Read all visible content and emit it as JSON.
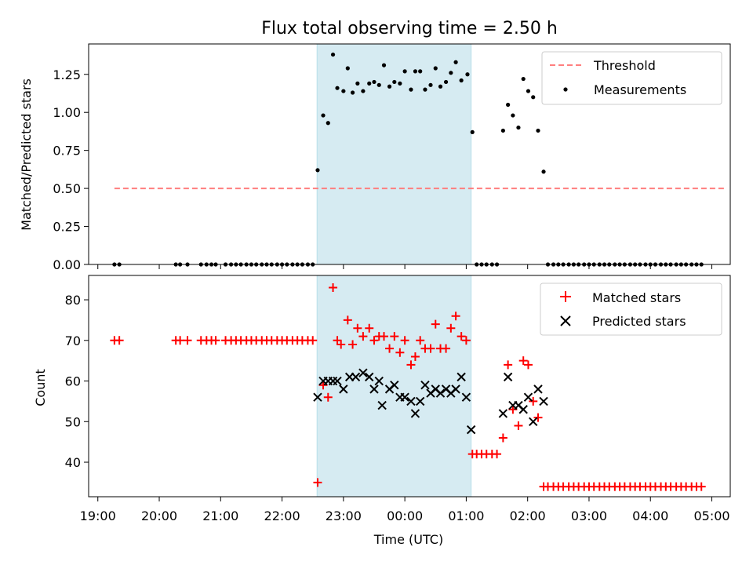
{
  "title": "Flux total observing time = 2.50 h",
  "chart_data": [
    {
      "type": "scatter",
      "panel": "top",
      "ylabel": "Matched/Predicted stars",
      "ylim": [
        0,
        1.45
      ],
      "xlim": [
        18.85,
        29.3
      ],
      "yticks": [
        0.0,
        0.25,
        0.5,
        0.75,
        1.0,
        1.25
      ],
      "ytick_labels": [
        "0.00",
        "0.25",
        "0.50",
        "0.75",
        "1.00",
        "1.25"
      ],
      "shaded_span": [
        22.57,
        25.08
      ],
      "threshold": {
        "name": "Threshold",
        "value": 0.5,
        "x_range": [
          19.27,
          29.2
        ],
        "color": "#ff7f7f"
      },
      "legend": [
        "Threshold",
        "Measurements"
      ],
      "series": [
        {
          "name": "Measurements",
          "color": "#000000",
          "points": [
            [
              19.27,
              0
            ],
            [
              19.35,
              0
            ],
            [
              20.27,
              0
            ],
            [
              20.34,
              0
            ],
            [
              20.46,
              0
            ],
            [
              20.68,
              0
            ],
            [
              20.77,
              0
            ],
            [
              20.85,
              0
            ],
            [
              20.92,
              0
            ],
            [
              21.08,
              0
            ],
            [
              21.17,
              0
            ],
            [
              21.25,
              0
            ],
            [
              21.33,
              0
            ],
            [
              21.42,
              0
            ],
            [
              21.5,
              0
            ],
            [
              21.58,
              0
            ],
            [
              21.67,
              0
            ],
            [
              21.75,
              0
            ],
            [
              21.83,
              0
            ],
            [
              21.92,
              0
            ],
            [
              22.0,
              0
            ],
            [
              22.08,
              0
            ],
            [
              22.17,
              0
            ],
            [
              22.25,
              0
            ],
            [
              22.33,
              0
            ],
            [
              22.42,
              0
            ],
            [
              22.5,
              0
            ],
            [
              22.58,
              0.62
            ],
            [
              22.67,
              0.98
            ],
            [
              22.75,
              0.93
            ],
            [
              22.83,
              1.38
            ],
            [
              22.9,
              1.16
            ],
            [
              23.0,
              1.14
            ],
            [
              23.07,
              1.29
            ],
            [
              23.15,
              1.13
            ],
            [
              23.23,
              1.19
            ],
            [
              23.32,
              1.14
            ],
            [
              23.42,
              1.19
            ],
            [
              23.5,
              1.2
            ],
            [
              23.58,
              1.18
            ],
            [
              23.66,
              1.31
            ],
            [
              23.75,
              1.17
            ],
            [
              23.83,
              1.2
            ],
            [
              23.92,
              1.19
            ],
            [
              24.0,
              1.27
            ],
            [
              24.1,
              1.15
            ],
            [
              24.17,
              1.27
            ],
            [
              24.25,
              1.27
            ],
            [
              24.33,
              1.15
            ],
            [
              24.42,
              1.18
            ],
            [
              24.5,
              1.29
            ],
            [
              24.58,
              1.17
            ],
            [
              24.67,
              1.2
            ],
            [
              24.75,
              1.26
            ],
            [
              24.83,
              1.33
            ],
            [
              24.92,
              1.21
            ],
            [
              25.02,
              1.25
            ],
            [
              25.1,
              0.87
            ],
            [
              25.17,
              0
            ],
            [
              25.25,
              0
            ],
            [
              25.33,
              0
            ],
            [
              25.42,
              0
            ],
            [
              25.5,
              0
            ],
            [
              25.6,
              0.88
            ],
            [
              25.68,
              1.05
            ],
            [
              25.76,
              0.98
            ],
            [
              25.85,
              0.9
            ],
            [
              25.93,
              1.22
            ],
            [
              26.01,
              1.14
            ],
            [
              26.09,
              1.1
            ],
            [
              26.17,
              0.88
            ],
            [
              26.26,
              0.61
            ],
            [
              26.33,
              0
            ],
            [
              26.42,
              0
            ],
            [
              26.5,
              0
            ],
            [
              26.58,
              0
            ],
            [
              26.67,
              0
            ],
            [
              26.75,
              0
            ],
            [
              26.83,
              0
            ],
            [
              26.92,
              0
            ],
            [
              27.0,
              0
            ],
            [
              27.08,
              0
            ],
            [
              27.17,
              0
            ],
            [
              27.25,
              0
            ],
            [
              27.33,
              0
            ],
            [
              27.42,
              0
            ],
            [
              27.5,
              0
            ],
            [
              27.58,
              0
            ],
            [
              27.67,
              0
            ],
            [
              27.75,
              0
            ],
            [
              27.83,
              0
            ],
            [
              27.92,
              0
            ],
            [
              28.0,
              0
            ],
            [
              28.08,
              0
            ],
            [
              28.17,
              0
            ],
            [
              28.25,
              0
            ],
            [
              28.33,
              0
            ],
            [
              28.42,
              0
            ],
            [
              28.5,
              0
            ],
            [
              28.58,
              0
            ],
            [
              28.67,
              0
            ],
            [
              28.75,
              0
            ],
            [
              28.83,
              0
            ]
          ]
        }
      ]
    },
    {
      "type": "scatter",
      "panel": "bottom",
      "ylabel": "Count",
      "xlabel": "Time (UTC)",
      "ylim": [
        31.5,
        86
      ],
      "xlim": [
        18.85,
        29.3
      ],
      "yticks": [
        40,
        50,
        60,
        70,
        80
      ],
      "ytick_labels": [
        "40",
        "50",
        "60",
        "70",
        "80"
      ],
      "xticks": [
        19,
        20,
        21,
        22,
        23,
        24,
        25,
        26,
        27,
        28,
        29
      ],
      "xtick_labels": [
        "19:00",
        "20:00",
        "21:00",
        "22:00",
        "23:00",
        "00:00",
        "01:00",
        "02:00",
        "03:00",
        "04:00",
        "05:00"
      ],
      "shaded_span": [
        22.57,
        25.08
      ],
      "legend": [
        "Matched stars",
        "Predicted stars"
      ],
      "series": [
        {
          "name": "Matched stars",
          "marker": "plus",
          "color": "#ff0000",
          "points": [
            [
              19.27,
              70
            ],
            [
              19.35,
              70
            ],
            [
              20.27,
              70
            ],
            [
              20.34,
              70
            ],
            [
              20.46,
              70
            ],
            [
              20.68,
              70
            ],
            [
              20.77,
              70
            ],
            [
              20.85,
              70
            ],
            [
              20.92,
              70
            ],
            [
              21.08,
              70
            ],
            [
              21.17,
              70
            ],
            [
              21.25,
              70
            ],
            [
              21.33,
              70
            ],
            [
              21.42,
              70
            ],
            [
              21.5,
              70
            ],
            [
              21.58,
              70
            ],
            [
              21.67,
              70
            ],
            [
              21.75,
              70
            ],
            [
              21.83,
              70
            ],
            [
              21.92,
              70
            ],
            [
              22.0,
              70
            ],
            [
              22.08,
              70
            ],
            [
              22.17,
              70
            ],
            [
              22.25,
              70
            ],
            [
              22.33,
              70
            ],
            [
              22.42,
              70
            ],
            [
              22.5,
              70
            ],
            [
              22.58,
              35
            ],
            [
              22.67,
              59
            ],
            [
              22.75,
              56
            ],
            [
              22.83,
              83
            ],
            [
              22.9,
              70
            ],
            [
              22.96,
              69
            ],
            [
              23.07,
              75
            ],
            [
              23.15,
              69
            ],
            [
              23.23,
              73
            ],
            [
              23.32,
              71
            ],
            [
              23.42,
              73
            ],
            [
              23.5,
              70
            ],
            [
              23.58,
              71
            ],
            [
              23.66,
              71
            ],
            [
              23.75,
              68
            ],
            [
              23.83,
              71
            ],
            [
              23.92,
              67
            ],
            [
              24.0,
              70
            ],
            [
              24.1,
              64
            ],
            [
              24.17,
              66
            ],
            [
              24.25,
              70
            ],
            [
              24.33,
              68
            ],
            [
              24.42,
              68
            ],
            [
              24.5,
              74
            ],
            [
              24.58,
              68
            ],
            [
              24.67,
              68
            ],
            [
              24.75,
              73
            ],
            [
              24.83,
              76
            ],
            [
              24.92,
              71
            ],
            [
              25.0,
              70
            ],
            [
              25.1,
              42
            ],
            [
              25.17,
              42
            ],
            [
              25.25,
              42
            ],
            [
              25.33,
              42
            ],
            [
              25.42,
              42
            ],
            [
              25.5,
              42
            ],
            [
              25.6,
              46
            ],
            [
              25.68,
              64
            ],
            [
              25.76,
              53
            ],
            [
              25.85,
              49
            ],
            [
              25.93,
              65
            ],
            [
              26.01,
              64
            ],
            [
              26.09,
              55
            ],
            [
              26.17,
              51
            ],
            [
              26.26,
              34
            ],
            [
              26.33,
              34
            ],
            [
              26.42,
              34
            ],
            [
              26.5,
              34
            ],
            [
              26.58,
              34
            ],
            [
              26.67,
              34
            ],
            [
              26.75,
              34
            ],
            [
              26.83,
              34
            ],
            [
              26.92,
              34
            ],
            [
              27.0,
              34
            ],
            [
              27.08,
              34
            ],
            [
              27.17,
              34
            ],
            [
              27.25,
              34
            ],
            [
              27.33,
              34
            ],
            [
              27.42,
              34
            ],
            [
              27.5,
              34
            ],
            [
              27.58,
              34
            ],
            [
              27.67,
              34
            ],
            [
              27.75,
              34
            ],
            [
              27.83,
              34
            ],
            [
              27.92,
              34
            ],
            [
              28.0,
              34
            ],
            [
              28.08,
              34
            ],
            [
              28.17,
              34
            ],
            [
              28.25,
              34
            ],
            [
              28.33,
              34
            ],
            [
              28.42,
              34
            ],
            [
              28.5,
              34
            ],
            [
              28.58,
              34
            ],
            [
              28.67,
              34
            ],
            [
              28.75,
              34
            ],
            [
              28.83,
              34
            ]
          ]
        },
        {
          "name": "Predicted stars",
          "marker": "x",
          "color": "#000000",
          "points": [
            [
              22.58,
              56
            ],
            [
              22.67,
              60
            ],
            [
              22.75,
              60
            ],
            [
              22.83,
              60
            ],
            [
              22.9,
              60
            ],
            [
              23.0,
              58
            ],
            [
              23.1,
              61
            ],
            [
              23.2,
              61
            ],
            [
              23.32,
              62
            ],
            [
              23.42,
              61
            ],
            [
              23.5,
              58
            ],
            [
              23.58,
              60
            ],
            [
              23.63,
              54
            ],
            [
              23.75,
              58
            ],
            [
              23.83,
              59
            ],
            [
              23.92,
              56
            ],
            [
              24.0,
              56
            ],
            [
              24.1,
              55
            ],
            [
              24.17,
              52
            ],
            [
              24.25,
              55
            ],
            [
              24.33,
              59
            ],
            [
              24.42,
              57
            ],
            [
              24.5,
              58
            ],
            [
              24.58,
              57
            ],
            [
              24.67,
              58
            ],
            [
              24.75,
              57
            ],
            [
              24.83,
              58
            ],
            [
              24.92,
              61
            ],
            [
              25.0,
              56
            ],
            [
              25.08,
              48
            ],
            [
              25.6,
              52
            ],
            [
              25.68,
              61
            ],
            [
              25.76,
              54
            ],
            [
              25.85,
              54
            ],
            [
              25.93,
              53
            ],
            [
              26.01,
              56
            ],
            [
              26.09,
              50
            ],
            [
              26.17,
              58
            ],
            [
              26.26,
              55
            ]
          ]
        }
      ]
    }
  ]
}
